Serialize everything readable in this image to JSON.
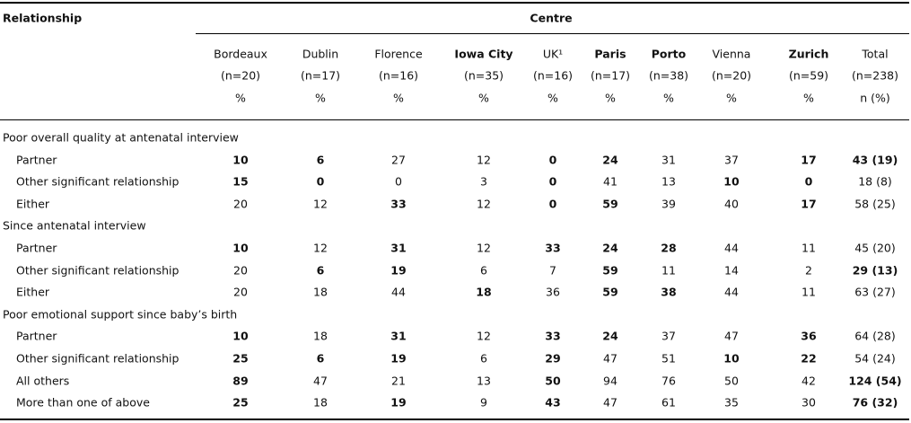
{
  "header": {
    "first": "Relationship",
    "group": "Centre"
  },
  "columns": [
    {
      "name": "Bordeaux",
      "n": "(n=20)",
      "unit": "%"
    },
    {
      "name": "Dublin",
      "n": "(n=17)",
      "unit": "%"
    },
    {
      "name": "Florence",
      "n": "(n=16)",
      "unit": "%"
    },
    {
      "name": "Iowa City",
      "n": "(n=35)",
      "unit": "%"
    },
    {
      "name": "UK¹",
      "n": "(n=16)",
      "unit": "%"
    },
    {
      "name": "Paris",
      "n": "(n=17)",
      "unit": "%"
    },
    {
      "name": "Porto",
      "n": "(n=38)",
      "unit": "%"
    },
    {
      "name": "Vienna",
      "n": "(n=20)",
      "unit": "%"
    },
    {
      "name": "Zurich",
      "n": "(n=59)",
      "unit": "%"
    },
    {
      "name": "Total",
      "n": "(n=238)",
      "unit": "n (%)"
    }
  ],
  "sections": [
    {
      "title": "Poor overall quality at antenatal interview",
      "rows": [
        {
          "label": "Partner",
          "cells": [
            10,
            6,
            27,
            12,
            0,
            24,
            31,
            37,
            17,
            "43 (19)"
          ]
        },
        {
          "label": "Other significant relationship",
          "cells": [
            15,
            0,
            0,
            3,
            0,
            41,
            13,
            10,
            0,
            "18 (8)"
          ]
        },
        {
          "label": "Either",
          "cells": [
            20,
            12,
            33,
            12,
            0,
            59,
            39,
            40,
            17,
            "58 (25)"
          ]
        }
      ]
    },
    {
      "title": "Since antenatal interview",
      "rows": [
        {
          "label": "Partner",
          "cells": [
            10,
            12,
            31,
            12,
            33,
            24,
            28,
            44,
            11,
            "45 (20)"
          ]
        },
        {
          "label": "Other significant relationship",
          "cells": [
            20,
            6,
            19,
            6,
            7,
            59,
            11,
            14,
            2,
            "29 (13)"
          ]
        },
        {
          "label": "Either",
          "cells": [
            20,
            18,
            44,
            18,
            36,
            59,
            38,
            44,
            11,
            "63 (27)"
          ]
        }
      ]
    },
    {
      "title": "Poor emotional support since baby’s birth",
      "rows": [
        {
          "label": "Partner",
          "cells": [
            10,
            18,
            31,
            12,
            33,
            24,
            37,
            47,
            36,
            "64 (28)"
          ]
        },
        {
          "label": "Other significant relationship",
          "cells": [
            25,
            6,
            19,
            6,
            29,
            47,
            51,
            10,
            22,
            "54 (24)"
          ]
        },
        {
          "label": "All others",
          "cells": [
            89,
            47,
            21,
            13,
            50,
            94,
            76,
            50,
            42,
            "124 (54)"
          ]
        },
        {
          "label": "More than one of above",
          "cells": [
            25,
            18,
            19,
            9,
            43,
            47,
            61,
            35,
            30,
            "76 (32)"
          ]
        }
      ]
    }
  ]
}
